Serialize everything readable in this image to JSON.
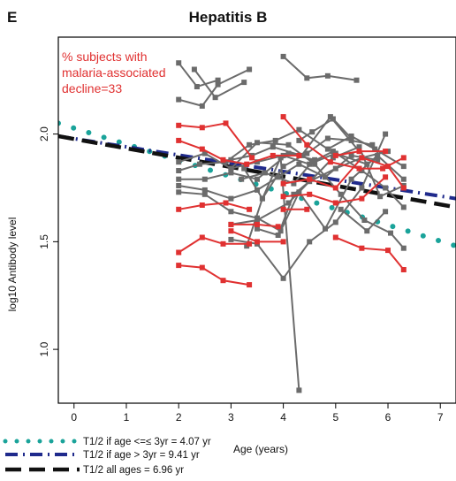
{
  "panel_label": "E",
  "chart_data": {
    "type": "line",
    "title": "Hepatitis B",
    "xlabel": "Age (years)",
    "ylabel": "log10 Antibody level",
    "xlim": [
      -0.3,
      7.3
    ],
    "ylim": [
      0.75,
      2.45
    ],
    "x_ticks": [
      0,
      1,
      2,
      3,
      4,
      5,
      6,
      7
    ],
    "y_ticks": [
      1.0,
      1.5,
      2.0
    ],
    "annotation": {
      "lines": [
        "% subjects with",
        "malaria-associated",
        "decline=33"
      ],
      "color": "#e03131"
    },
    "colors": {
      "gray_series": "#6b6b6b",
      "red_series": "#e03131",
      "teal_fit": "#1aa39a",
      "navy_fit": "#1f2a8c",
      "black_fit": "#111111"
    },
    "fits": [
      {
        "name": "T1/2 if age <=≤ 3yr = 4.07 yr",
        "style": "dotted",
        "color": "#1aa39a",
        "points": [
          [
            -0.3,
            2.05
          ],
          [
            7.3,
            1.48
          ]
        ]
      },
      {
        "name": "T1/2 if age > 3yr = 9.41 yr",
        "style": "dash-dot",
        "color": "#1f2a8c",
        "points": [
          [
            -0.3,
            1.99
          ],
          [
            7.3,
            1.7
          ]
        ]
      },
      {
        "name": "T1/2 all ages = 6.96 yr",
        "style": "dashed",
        "color": "#111111",
        "points": [
          [
            -0.3,
            1.99
          ],
          [
            7.3,
            1.66
          ]
        ]
      }
    ],
    "gray_series": [
      [
        [
          2.0,
          2.33
        ],
        [
          2.35,
          2.22
        ],
        [
          2.75,
          2.25
        ]
      ],
      [
        [
          2.0,
          2.16
        ],
        [
          2.45,
          2.13
        ],
        [
          2.75,
          2.23
        ],
        [
          3.35,
          2.3
        ]
      ],
      [
        [
          2.3,
          2.3
        ],
        [
          2.7,
          2.17
        ],
        [
          3.25,
          2.24
        ]
      ],
      [
        [
          4.0,
          2.36
        ],
        [
          4.45,
          2.26
        ],
        [
          4.85,
          2.27
        ],
        [
          5.4,
          2.25
        ]
      ],
      [
        [
          2.0,
          1.87
        ],
        [
          2.5,
          1.91
        ],
        [
          3.0,
          1.84
        ],
        [
          3.5,
          1.87
        ],
        [
          4.0,
          1.9
        ],
        [
          4.5,
          1.86
        ],
        [
          5.0,
          1.91
        ],
        [
          5.6,
          1.86
        ]
      ],
      [
        [
          2.0,
          1.83
        ],
        [
          2.4,
          1.86
        ],
        [
          2.9,
          1.87
        ],
        [
          3.35,
          1.95
        ],
        [
          3.85,
          1.97
        ],
        [
          4.3,
          2.02
        ],
        [
          4.85,
          1.93
        ],
        [
          5.3,
          1.99
        ],
        [
          5.75,
          1.93
        ],
        [
          6.3,
          1.85
        ]
      ],
      [
        [
          2.0,
          1.79
        ],
        [
          2.5,
          1.79
        ],
        [
          3.0,
          1.82
        ],
        [
          3.5,
          1.79
        ],
        [
          4.1,
          1.91
        ],
        [
          4.6,
          1.88
        ]
      ],
      [
        [
          2.0,
          1.76
        ],
        [
          2.5,
          1.74
        ],
        [
          3.0,
          1.7
        ],
        [
          3.5,
          1.74
        ],
        [
          3.9,
          1.8
        ],
        [
          4.3,
          1.86
        ],
        [
          4.8,
          1.8
        ],
        [
          5.3,
          1.9
        ],
        [
          5.8,
          1.88
        ]
      ],
      [
        [
          2.0,
          1.73
        ],
        [
          2.5,
          1.72
        ],
        [
          3.0,
          1.64
        ],
        [
          3.5,
          1.61
        ],
        [
          3.95,
          1.55
        ],
        [
          4.3,
          1.73
        ],
        [
          4.8,
          1.56
        ],
        [
          5.3,
          1.79
        ],
        [
          5.8,
          1.9
        ],
        [
          6.3,
          1.79
        ]
      ],
      [
        [
          3.0,
          1.84
        ],
        [
          3.5,
          1.96
        ],
        [
          4.1,
          1.95
        ],
        [
          4.6,
          1.86
        ],
        [
          5.1,
          1.72
        ],
        [
          5.55,
          1.6
        ],
        [
          6.05,
          1.54
        ],
        [
          6.3,
          1.47
        ]
      ],
      [
        [
          3.0,
          1.58
        ],
        [
          3.5,
          1.6
        ],
        [
          4.1,
          1.68
        ],
        [
          4.5,
          1.78
        ],
        [
          5.0,
          1.84
        ],
        [
          5.5,
          1.89
        ],
        [
          6.0,
          1.92
        ]
      ],
      [
        [
          3.0,
          1.51
        ],
        [
          3.5,
          1.49
        ],
        [
          4.0,
          1.33
        ],
        [
          4.5,
          1.5
        ],
        [
          5.0,
          1.59
        ],
        [
          5.5,
          1.75
        ],
        [
          5.95,
          2.0
        ]
      ],
      [
        [
          3.3,
          1.48
        ],
        [
          3.6,
          1.7
        ],
        [
          4.0,
          1.85
        ],
        [
          4.45,
          1.91
        ],
        [
          4.85,
          1.98
        ],
        [
          5.3,
          1.97
        ],
        [
          5.7,
          1.95
        ]
      ],
      [
        [
          3.25,
          1.84
        ],
        [
          3.6,
          1.7
        ],
        [
          3.95,
          1.89
        ],
        [
          4.3,
          0.81
        ]
      ],
      [
        [
          3.2,
          1.79
        ],
        [
          3.65,
          1.82
        ],
        [
          4.2,
          1.77
        ],
        [
          4.55,
          1.87
        ],
        [
          4.95,
          1.92
        ],
        [
          5.5,
          1.83
        ],
        [
          5.95,
          1.75
        ],
        [
          6.3,
          1.66
        ]
      ],
      [
        [
          3.5,
          1.56
        ],
        [
          3.9,
          1.53
        ],
        [
          4.2,
          1.72
        ],
        [
          4.55,
          1.79
        ],
        [
          4.95,
          1.89
        ],
        [
          5.45,
          1.94
        ],
        [
          5.85,
          1.71
        ],
        [
          6.3,
          1.76
        ]
      ],
      [
        [
          3.0,
          1.88
        ],
        [
          3.4,
          1.9
        ],
        [
          3.8,
          1.94
        ],
        [
          4.35,
          1.9
        ],
        [
          4.9,
          2.08
        ],
        [
          5.45,
          1.92
        ]
      ],
      [
        [
          4.3,
          1.97
        ],
        [
          4.55,
          2.01
        ],
        [
          4.95,
          2.07
        ],
        [
          5.3,
          1.98
        ]
      ],
      [
        [
          5.1,
          1.65
        ],
        [
          5.6,
          1.55
        ],
        [
          5.95,
          1.64
        ]
      ]
    ],
    "red_series": [
      [
        [
          2.0,
          2.04
        ],
        [
          2.45,
          2.03
        ],
        [
          2.9,
          2.05
        ],
        [
          3.4,
          1.89
        ]
      ],
      [
        [
          2.0,
          1.97
        ],
        [
          2.45,
          1.93
        ],
        [
          2.85,
          1.88
        ],
        [
          3.3,
          1.86
        ],
        [
          3.8,
          1.9
        ],
        [
          4.3,
          1.9
        ]
      ],
      [
        [
          2.0,
          1.65
        ],
        [
          2.45,
          1.67
        ],
        [
          2.9,
          1.68
        ],
        [
          3.35,
          1.65
        ]
      ],
      [
        [
          2.0,
          1.45
        ],
        [
          2.45,
          1.52
        ],
        [
          2.85,
          1.49
        ],
        [
          3.35,
          1.49
        ]
      ],
      [
        [
          2.0,
          1.39
        ],
        [
          2.45,
          1.38
        ],
        [
          2.85,
          1.32
        ],
        [
          3.35,
          1.3
        ]
      ],
      [
        [
          3.0,
          1.58
        ],
        [
          3.5,
          1.58
        ],
        [
          3.9,
          1.57
        ]
      ],
      [
        [
          3.0,
          1.55
        ],
        [
          3.5,
          1.5
        ],
        [
          4.0,
          1.5
        ]
      ],
      [
        [
          4.0,
          2.08
        ],
        [
          4.45,
          1.95
        ],
        [
          4.9,
          1.87
        ],
        [
          5.45,
          1.84
        ],
        [
          5.9,
          1.84
        ],
        [
          6.3,
          1.89
        ]
      ],
      [
        [
          4.0,
          1.77
        ],
        [
          4.5,
          1.79
        ],
        [
          5.0,
          1.75
        ],
        [
          5.5,
          1.89
        ],
        [
          6.0,
          1.85
        ],
        [
          6.3,
          1.75
        ]
      ],
      [
        [
          4.0,
          1.71
        ],
        [
          4.5,
          1.72
        ],
        [
          5.0,
          1.68
        ],
        [
          5.5,
          1.7
        ],
        [
          5.95,
          1.8
        ]
      ],
      [
        [
          4.0,
          1.65
        ],
        [
          4.45,
          1.65
        ]
      ],
      [
        [
          5.0,
          1.52
        ],
        [
          5.5,
          1.47
        ],
        [
          6.0,
          1.46
        ],
        [
          6.3,
          1.37
        ]
      ],
      [
        [
          5.0,
          1.9
        ],
        [
          5.45,
          1.92
        ],
        [
          5.95,
          1.92
        ]
      ]
    ]
  }
}
